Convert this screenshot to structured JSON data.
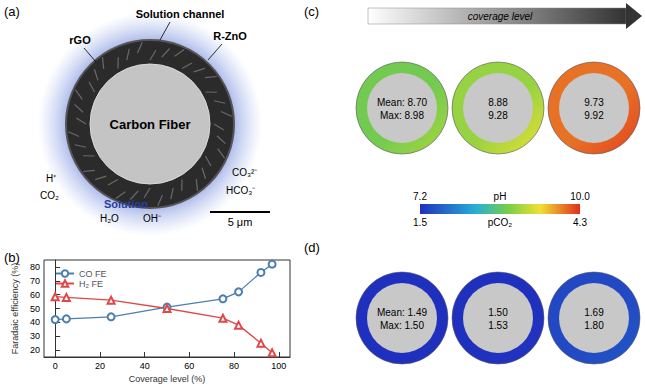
{
  "chart_data": {
    "type": "line",
    "title": "(b)",
    "x_label": "Coverage level (%)",
    "y_label": "Faradaic efficiency (%)",
    "x": [
      0,
      5,
      25,
      50,
      75,
      82,
      92,
      97
    ],
    "series": [
      {
        "name": "CO FE",
        "color": "#4a7fb0",
        "marker": "open_circle",
        "values": [
          42,
          42.5,
          44,
          51,
          57,
          62,
          76,
          82
        ]
      },
      {
        "name": "H₂ FE",
        "color": "#e04848",
        "marker": "open_triangle",
        "values": [
          58.5,
          58,
          56,
          50,
          43,
          38,
          25,
          18
        ]
      }
    ],
    "xlim": [
      -5,
      105
    ],
    "xticks": [
      0,
      20,
      40,
      60,
      80,
      100
    ],
    "ylim": [
      15,
      85
    ],
    "yticks": [
      20,
      30,
      40,
      50,
      60,
      70,
      80
    ],
    "legend": "upper left",
    "grid": false
  },
  "panel_a": {
    "label": "(a)",
    "core": "Carbon Fiber",
    "labels": {
      "channel": "Solution channel",
      "rgo": "rGO",
      "zno": "R-ZnO",
      "solution": "Solution",
      "h": "H⁺",
      "co2": "CO₂",
      "h2o": "H₂O",
      "oh": "OH⁻",
      "co3": "CO₃²⁻",
      "hco3": "HCO₃⁻"
    },
    "scale_bar": "5 μm"
  },
  "panel_c": {
    "label": "(c)",
    "arrow_label": "coverage level",
    "maps": [
      {
        "mean": 8.7,
        "max": 8.98,
        "mean_label": "Mean: 8.70",
        "max_label": "Max: 8.98"
      },
      {
        "mean": 8.88,
        "max": 9.28,
        "mean_label": "8.88",
        "max_label": "9.28"
      },
      {
        "mean": 9.73,
        "max": 9.92,
        "mean_label": "9.73",
        "max_label": "9.92"
      }
    ]
  },
  "colorbar": {
    "pH": {
      "label": "pH",
      "range": [
        7.2,
        10
      ],
      "ticks": [
        7.2,
        {
          "value": 10,
          "label": "10.0"
        }
      ]
    },
    "pCO2": {
      "label": "pCO₂",
      "range": [
        1.5,
        4.3
      ],
      "ticks": [
        1.5,
        4.3
      ]
    }
  },
  "panel_d": {
    "label": "(d)",
    "maps": [
      {
        "mean": 1.49,
        "max": 1.5,
        "mean_label": "Mean: 1.49",
        "max_label": "Max: 1.50"
      },
      {
        "mean": 1.5,
        "max": 1.53,
        "mean_label": "1.50",
        "max_label": "1.53"
      },
      {
        "mean": 1.69,
        "max": 1.8,
        "mean_label": "1.69",
        "max_label": "1.80"
      }
    ]
  }
}
